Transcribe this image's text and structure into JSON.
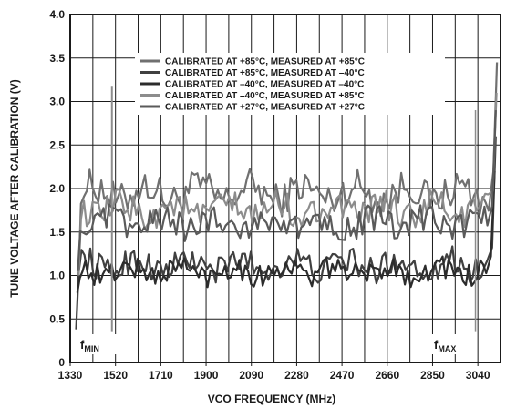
{
  "chart_data": {
    "type": "line",
    "title": "",
    "xlabel": "VCO FREQUENCY (MHz)",
    "ylabel": "TUNE VOLTAGE AFTER CALIBRATION (V)",
    "xlim": [
      1330,
      3135
    ],
    "ylim": [
      0,
      4.0
    ],
    "xticks": [
      1330,
      1520,
      1710,
      1900,
      2090,
      2280,
      2470,
      2660,
      2850,
      3040
    ],
    "xtick_labels": [
      "1330",
      "1520",
      "1710",
      "1900",
      "2090",
      "2280",
      "2470",
      "2660",
      "2850",
      "3040"
    ],
    "yticks": [
      0,
      0.5,
      1.0,
      1.5,
      2.0,
      2.5,
      3.0,
      3.5,
      4.0
    ],
    "ytick_labels": [
      "0",
      "0.5",
      "1.0",
      "1.5",
      "2.0",
      "2.5",
      "3.0",
      "3.5",
      "4.0"
    ],
    "grid": true,
    "legend_position": "top-right",
    "series": [
      {
        "name": "CALIBRATED AT +85°C, MEASURED AT +85°C",
        "color": "#707070",
        "center": 1.95,
        "amplitude": 0.25,
        "start": [
          1365,
          0.95
        ],
        "end": [
          3120,
          3.45
        ]
      },
      {
        "name": "CALIBRATED AT +85°C, MEASURED AT –40°C",
        "color": "#404040",
        "center": 1.12,
        "amplitude": 0.2,
        "start": [
          1355,
          0.38
        ],
        "end": [
          3115,
          2.6
        ]
      },
      {
        "name": "CALIBRATED AT –40°C, MEASURED AT –40°C",
        "color": "#2c2c2c",
        "center": 1.05,
        "amplitude": 0.17,
        "start": [
          1360,
          0.8
        ],
        "end": [
          3110,
          2.2
        ]
      },
      {
        "name": "CALIBRATED AT –40°C, MEASURED AT +85°C",
        "color": "#8c8c8c",
        "center": 1.75,
        "amplitude": 0.22,
        "start": [
          1365,
          1.0
        ],
        "end": [
          3118,
          3.1
        ]
      },
      {
        "name": "CALIBRATED AT +27°C, MEASURED AT +27°C",
        "color": "#5a5a5a",
        "center": 1.6,
        "amplitude": 0.2,
        "start": [
          1362,
          1.05
        ],
        "end": [
          3115,
          2.9
        ]
      }
    ],
    "annotations": [
      {
        "label": "f",
        "sub": "MIN",
        "x": 1505
      },
      {
        "label": "f",
        "sub": "MAX",
        "x": 3030
      }
    ]
  }
}
